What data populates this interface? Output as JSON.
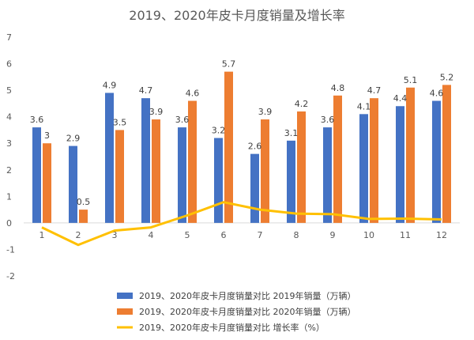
{
  "chart_data": {
    "type": "bar",
    "title": "2019、2020年皮卡月度销量及增长率",
    "categories": [
      "1",
      "2",
      "3",
      "4",
      "5",
      "6",
      "7",
      "8",
      "9",
      "10",
      "11",
      "12"
    ],
    "series": [
      {
        "name": "2019、2020年皮卡月度销量对比 2019年销量（万辆）",
        "kind": "bar",
        "color": "#4472C4",
        "values": [
          3.6,
          2.9,
          4.9,
          4.7,
          3.6,
          3.2,
          2.6,
          3.1,
          3.6,
          4.1,
          4.4,
          4.6
        ]
      },
      {
        "name": "2019、2020年皮卡月度销量对比 2020年销量（万辆）",
        "kind": "bar",
        "color": "#ED7D31",
        "values": [
          3,
          0.5,
          3.5,
          3.9,
          4.6,
          5.7,
          3.9,
          4.2,
          4.8,
          4.7,
          5.1,
          5.2
        ]
      },
      {
        "name": "2019、2020年皮卡月度销量对比 增长率（%）",
        "kind": "line",
        "color": "#FFC000",
        "values": [
          -0.17,
          -0.83,
          -0.29,
          -0.17,
          0.28,
          0.78,
          0.5,
          0.35,
          0.33,
          0.15,
          0.16,
          0.13
        ]
      }
    ],
    "y_ticks": [
      "7",
      "6",
      "5",
      "4",
      "3",
      "2",
      "1",
      "0",
      "-1",
      "-2"
    ],
    "ylim": [
      -2,
      7
    ],
    "grid": false,
    "legend_position": "bottom"
  }
}
